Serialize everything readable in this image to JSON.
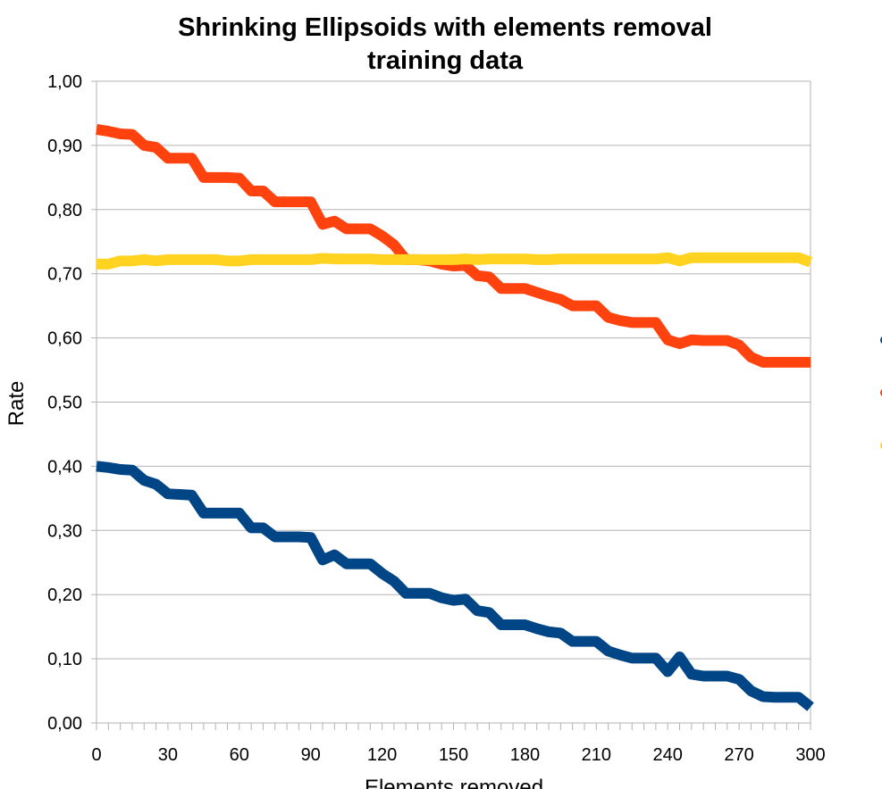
{
  "chart_data": {
    "type": "line",
    "title": [
      "Shrinking Ellipsoids with elements removal",
      "training data"
    ],
    "xlabel": "Elements removed",
    "ylabel": "Rate",
    "xlim": [
      0,
      300
    ],
    "ylim": [
      0,
      1
    ],
    "x_ticks": [
      "0",
      "30",
      "60",
      "90",
      "120",
      "150",
      "180",
      "210",
      "240",
      "270",
      "300"
    ],
    "y_ticks": [
      "0,00",
      "0,10",
      "0,20",
      "0,30",
      "0,40",
      "0,50",
      "0,60",
      "0,70",
      "0,80",
      "0,90",
      "1,00"
    ],
    "grid": true,
    "legend": "right (partially cut off)",
    "x": [
      0,
      5,
      10,
      15,
      20,
      25,
      30,
      35,
      40,
      45,
      50,
      55,
      60,
      65,
      70,
      75,
      80,
      85,
      90,
      95,
      100,
      105,
      110,
      115,
      120,
      125,
      130,
      135,
      140,
      145,
      150,
      155,
      160,
      165,
      170,
      175,
      180,
      185,
      190,
      195,
      200,
      205,
      210,
      215,
      220,
      225,
      230,
      235,
      240,
      245,
      250,
      255,
      260,
      265,
      270,
      275,
      280,
      285,
      290,
      295,
      300
    ],
    "series": [
      {
        "color": "#004586",
        "values": [
          0.4,
          0.398,
          0.395,
          0.394,
          0.378,
          0.372,
          0.357,
          0.356,
          0.355,
          0.327,
          0.327,
          0.327,
          0.327,
          0.304,
          0.304,
          0.29,
          0.29,
          0.29,
          0.289,
          0.254,
          0.262,
          0.248,
          0.248,
          0.248,
          0.233,
          0.221,
          0.202,
          0.202,
          0.202,
          0.195,
          0.191,
          0.193,
          0.175,
          0.172,
          0.153,
          0.153,
          0.153,
          0.147,
          0.142,
          0.14,
          0.127,
          0.127,
          0.127,
          0.112,
          0.106,
          0.101,
          0.101,
          0.101,
          0.08,
          0.103,
          0.076,
          0.073,
          0.073,
          0.073,
          0.068,
          0.05,
          0.041,
          0.04,
          0.04,
          0.04,
          0.025
        ]
      },
      {
        "color": "#ff420e",
        "values": [
          0.925,
          0.922,
          0.918,
          0.917,
          0.9,
          0.897,
          0.88,
          0.88,
          0.88,
          0.85,
          0.85,
          0.85,
          0.849,
          0.829,
          0.829,
          0.812,
          0.812,
          0.812,
          0.812,
          0.777,
          0.782,
          0.77,
          0.77,
          0.77,
          0.759,
          0.745,
          0.722,
          0.722,
          0.72,
          0.715,
          0.712,
          0.713,
          0.697,
          0.695,
          0.677,
          0.677,
          0.677,
          0.671,
          0.665,
          0.66,
          0.65,
          0.65,
          0.65,
          0.632,
          0.627,
          0.624,
          0.624,
          0.624,
          0.597,
          0.591,
          0.597,
          0.596,
          0.596,
          0.596,
          0.589,
          0.57,
          0.562,
          0.562,
          0.562,
          0.562,
          0.562
        ]
      },
      {
        "color": "#ffd320",
        "values": [
          0.715,
          0.715,
          0.72,
          0.72,
          0.722,
          0.72,
          0.722,
          0.722,
          0.722,
          0.722,
          0.722,
          0.72,
          0.72,
          0.722,
          0.722,
          0.722,
          0.722,
          0.722,
          0.722,
          0.724,
          0.723,
          0.723,
          0.723,
          0.723,
          0.722,
          0.722,
          0.722,
          0.722,
          0.722,
          0.722,
          0.722,
          0.723,
          0.722,
          0.723,
          0.723,
          0.723,
          0.723,
          0.722,
          0.722,
          0.723,
          0.723,
          0.723,
          0.723,
          0.723,
          0.723,
          0.723,
          0.723,
          0.723,
          0.725,
          0.72,
          0.725,
          0.725,
          0.725,
          0.725,
          0.725,
          0.725,
          0.725,
          0.725,
          0.725,
          0.725,
          0.718
        ]
      }
    ]
  }
}
